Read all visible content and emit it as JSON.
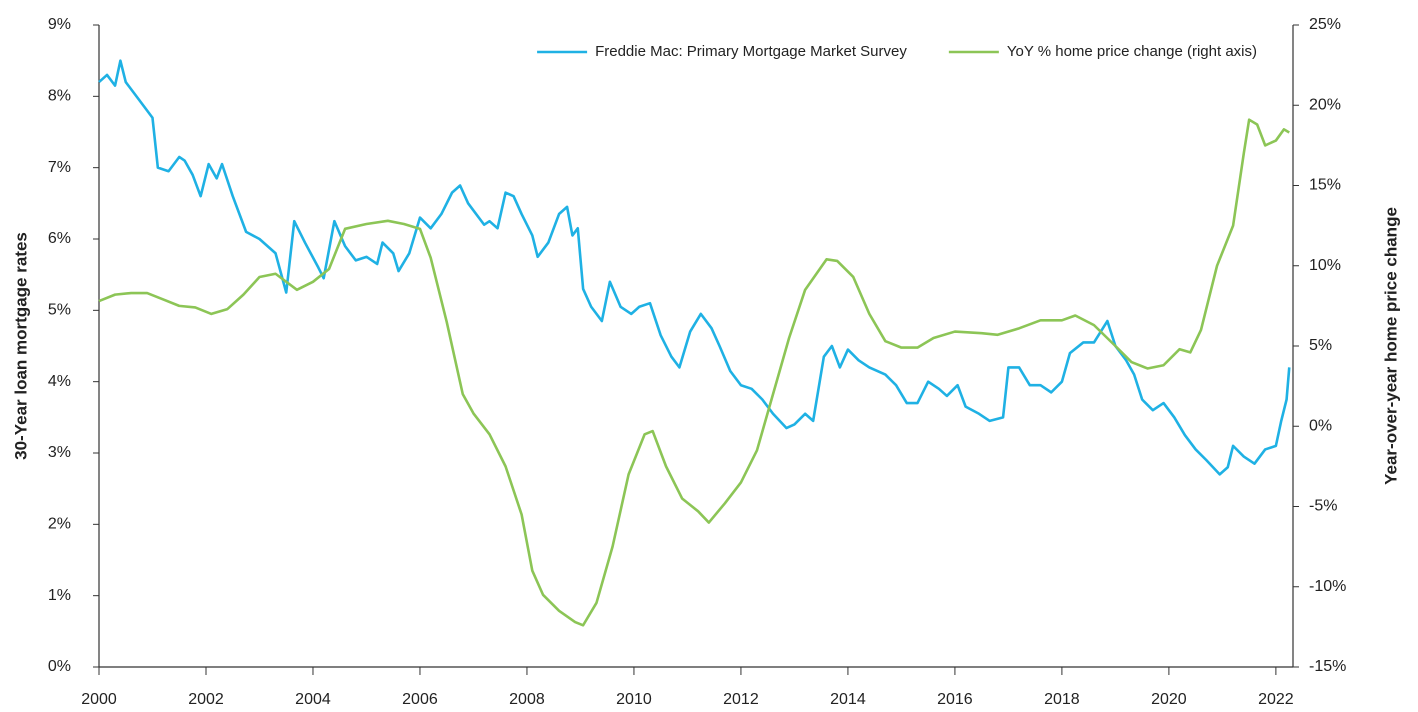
{
  "chart_data": {
    "type": "line",
    "y_label": "30-Year loan mortgage rates",
    "y2_label": "Year-over-year home price change",
    "xlim": [
      2000,
      2022.32
    ],
    "xticks": [
      2000,
      2002,
      2004,
      2006,
      2008,
      2010,
      2012,
      2014,
      2016,
      2018,
      2020,
      2022
    ],
    "ylim": [
      0,
      9
    ],
    "yticks": [
      {
        "value": 0,
        "label": "0%"
      },
      {
        "value": 1,
        "label": "1%"
      },
      {
        "value": 2,
        "label": "2%"
      },
      {
        "value": 3,
        "label": "3%"
      },
      {
        "value": 4,
        "label": "4%"
      },
      {
        "value": 5,
        "label": "5%"
      },
      {
        "value": 6,
        "label": "6%"
      },
      {
        "value": 7,
        "label": "7%"
      },
      {
        "value": 8,
        "label": "8%"
      },
      {
        "value": 9,
        "label": "9%"
      }
    ],
    "y2lim": [
      -15,
      25
    ],
    "y2ticks": [
      {
        "value": -15,
        "label": "-15%"
      },
      {
        "value": -10,
        "label": "-10%"
      },
      {
        "value": -5,
        "label": "-5%"
      },
      {
        "value": 0,
        "label": "0%"
      },
      {
        "value": 5,
        "label": "5%"
      },
      {
        "value": 10,
        "label": "10%"
      },
      {
        "value": 15,
        "label": "15%"
      },
      {
        "value": 20,
        "label": "20%"
      },
      {
        "value": 25,
        "label": "25%"
      }
    ],
    "grid": false,
    "legend": "top-right",
    "series": [
      {
        "name": "Freddie Mac: Primary Mortgage Market Survey",
        "color": "#1fb1e4",
        "x": [
          2000.0,
          2000.15,
          2000.3,
          2000.4,
          2000.5,
          2000.75,
          2001.0,
          2001.1,
          2001.3,
          2001.5,
          2001.6,
          2001.75,
          2001.9,
          2002.05,
          2002.2,
          2002.3,
          2002.5,
          2002.75,
          2003.0,
          2003.3,
          2003.5,
          2003.65,
          2003.85,
          2004.1,
          2004.2,
          2004.4,
          2004.6,
          2004.8,
          2005.0,
          2005.2,
          2005.3,
          2005.5,
          2005.6,
          2005.8,
          2006.0,
          2006.2,
          2006.4,
          2006.6,
          2006.75,
          2006.9,
          2007.2,
          2007.3,
          2007.45,
          2007.6,
          2007.75,
          2007.9,
          2008.1,
          2008.2,
          2008.4,
          2008.6,
          2008.75,
          2008.85,
          2008.95,
          2009.05,
          2009.2,
          2009.4,
          2009.55,
          2009.75,
          2009.95,
          2010.1,
          2010.3,
          2010.5,
          2010.7,
          2010.85,
          2011.05,
          2011.25,
          2011.45,
          2011.6,
          2011.8,
          2012.0,
          2012.2,
          2012.4,
          2012.6,
          2012.85,
          2013.0,
          2013.2,
          2013.35,
          2013.55,
          2013.7,
          2013.85,
          2014.0,
          2014.2,
          2014.4,
          2014.7,
          2014.9,
          2015.1,
          2015.3,
          2015.5,
          2015.7,
          2015.85,
          2016.05,
          2016.2,
          2016.45,
          2016.65,
          2016.9,
          2017.0,
          2017.2,
          2017.4,
          2017.6,
          2017.8,
          2018.0,
          2018.15,
          2018.4,
          2018.6,
          2018.85,
          2019.0,
          2019.2,
          2019.35,
          2019.5,
          2019.7,
          2019.9,
          2020.1,
          2020.3,
          2020.5,
          2020.7,
          2020.95,
          2021.1,
          2021.2,
          2021.4,
          2021.6,
          2021.8,
          2022.0,
          2022.1,
          2022.2,
          2022.25
        ],
        "values": [
          8.2,
          8.3,
          8.15,
          8.5,
          8.2,
          7.95,
          7.7,
          7.0,
          6.95,
          7.15,
          7.1,
          6.9,
          6.6,
          7.05,
          6.85,
          7.05,
          6.6,
          6.1,
          6.0,
          5.8,
          5.25,
          6.25,
          5.95,
          5.6,
          5.45,
          6.25,
          5.9,
          5.7,
          5.75,
          5.65,
          5.95,
          5.8,
          5.55,
          5.8,
          6.3,
          6.15,
          6.35,
          6.65,
          6.75,
          6.5,
          6.2,
          6.25,
          6.15,
          6.65,
          6.6,
          6.35,
          6.05,
          5.75,
          5.95,
          6.35,
          6.45,
          6.05,
          6.15,
          5.3,
          5.05,
          4.85,
          5.4,
          5.05,
          4.95,
          5.05,
          5.1,
          4.65,
          4.35,
          4.2,
          4.7,
          4.95,
          4.75,
          4.5,
          4.15,
          3.95,
          3.9,
          3.75,
          3.55,
          3.35,
          3.4,
          3.55,
          3.45,
          4.35,
          4.5,
          4.2,
          4.45,
          4.3,
          4.2,
          4.1,
          3.95,
          3.7,
          3.7,
          4.0,
          3.9,
          3.8,
          3.95,
          3.65,
          3.55,
          3.45,
          3.5,
          4.2,
          4.2,
          3.95,
          3.95,
          3.85,
          4.0,
          4.4,
          4.55,
          4.55,
          4.85,
          4.5,
          4.3,
          4.1,
          3.75,
          3.6,
          3.7,
          3.5,
          3.25,
          3.05,
          2.9,
          2.7,
          2.8,
          3.1,
          2.95,
          2.85,
          3.05,
          3.1,
          3.45,
          3.75,
          4.2
        ]
      },
      {
        "name": "YoY % home price change (right axis)",
        "color": "#8cc556",
        "axis": "y2",
        "x": [
          2000.0,
          2000.3,
          2000.6,
          2000.9,
          2001.2,
          2001.5,
          2001.8,
          2002.1,
          2002.4,
          2002.7,
          2003.0,
          2003.3,
          2003.7,
          2004.0,
          2004.3,
          2004.6,
          2005.0,
          2005.4,
          2005.7,
          2006.0,
          2006.2,
          2006.5,
          2006.8,
          2007.0,
          2007.3,
          2007.6,
          2007.9,
          2008.1,
          2008.3,
          2008.6,
          2008.9,
          2009.05,
          2009.3,
          2009.6,
          2009.9,
          2010.2,
          2010.35,
          2010.6,
          2010.9,
          2011.2,
          2011.4,
          2011.7,
          2012.0,
          2012.3,
          2012.6,
          2012.9,
          2013.2,
          2013.6,
          2013.8,
          2014.1,
          2014.4,
          2014.7,
          2015.0,
          2015.3,
          2015.6,
          2016.0,
          2016.5,
          2016.8,
          2017.2,
          2017.6,
          2018.0,
          2018.25,
          2018.6,
          2019.0,
          2019.3,
          2019.6,
          2019.9,
          2020.2,
          2020.4,
          2020.6,
          2020.9,
          2021.2,
          2021.4,
          2021.5,
          2021.65,
          2021.8,
          2022.0,
          2022.15,
          2022.25
        ],
        "values": [
          7.8,
          8.2,
          8.3,
          8.3,
          7.9,
          7.5,
          7.4,
          7.0,
          7.3,
          8.2,
          9.3,
          9.5,
          8.5,
          9.0,
          9.8,
          12.3,
          12.6,
          12.8,
          12.6,
          12.3,
          10.5,
          6.5,
          2.0,
          0.8,
          -0.5,
          -2.5,
          -5.5,
          -9.0,
          -10.5,
          -11.5,
          -12.2,
          -12.4,
          -11.0,
          -7.5,
          -3.0,
          -0.5,
          -0.3,
          -2.5,
          -4.5,
          -5.3,
          -6.0,
          -4.8,
          -3.5,
          -1.5,
          2.0,
          5.5,
          8.5,
          10.4,
          10.3,
          9.3,
          7.0,
          5.3,
          4.9,
          4.9,
          5.5,
          5.9,
          5.8,
          5.7,
          6.1,
          6.6,
          6.6,
          6.9,
          6.3,
          5.0,
          4.0,
          3.6,
          3.8,
          4.8,
          4.6,
          6.0,
          10.0,
          12.5,
          17.0,
          19.1,
          18.8,
          17.5,
          17.8,
          18.5,
          18.3
        ]
      }
    ]
  }
}
